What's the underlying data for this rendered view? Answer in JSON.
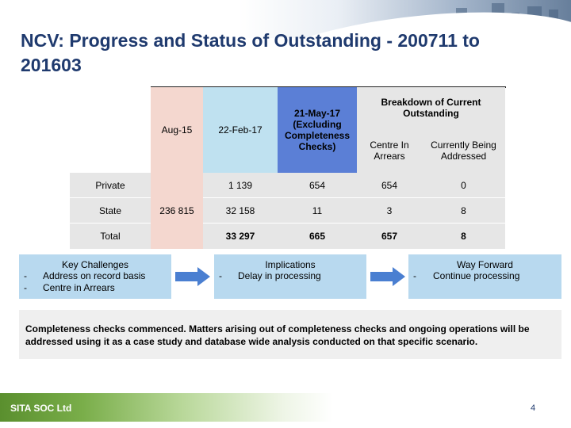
{
  "title": "NCV: Progress and Status of Outstanding - 200711 to 201603",
  "table": {
    "headers": {
      "aug15": "Aug-15",
      "feb17": "22-Feb-17",
      "may17": "21-May-17 (Excluding Completeness Checks)",
      "breakdown": "Breakdown of Current Outstanding",
      "centre_in_arrears": "Centre In Arrears",
      "currently_addressed": "Currently Being Addressed"
    },
    "aug15_value": "236 815",
    "rows": [
      {
        "label": "Private",
        "feb17": "1 139",
        "may17": "654",
        "arrears": "654",
        "addressed": "0"
      },
      {
        "label": "State",
        "feb17": "32 158",
        "may17": "11",
        "arrears": "3",
        "addressed": "8"
      },
      {
        "label": "Total",
        "feb17": "33 297",
        "may17": "665",
        "arrears": "657",
        "addressed": "8"
      }
    ]
  },
  "key_challenges": {
    "title": "Key Challenges",
    "items": [
      "Address on record basis",
      "Centre in Arrears"
    ]
  },
  "implications": {
    "title": "Implications",
    "items": [
      "Delay in processing"
    ]
  },
  "way_forward": {
    "title": "Way Forward",
    "items": [
      "Continue processing"
    ]
  },
  "bullet": "-",
  "note": "Completeness checks commenced. Matters arising out of completeness checks and ongoing operations will be addressed using it as a case study and database wide analysis conducted on that specific scenario.",
  "footer": {
    "company": "SITA SOC Ltd",
    "page_number": "4"
  },
  "colors": {
    "title": "#1f3a6e",
    "aug_col": "#f4d7cf",
    "feb_col": "#bfe1f0",
    "may_col": "#5b7fd6",
    "grey": "#e6e6e6",
    "box": "#b8d9ef",
    "arrow": "#4a7fd1"
  }
}
